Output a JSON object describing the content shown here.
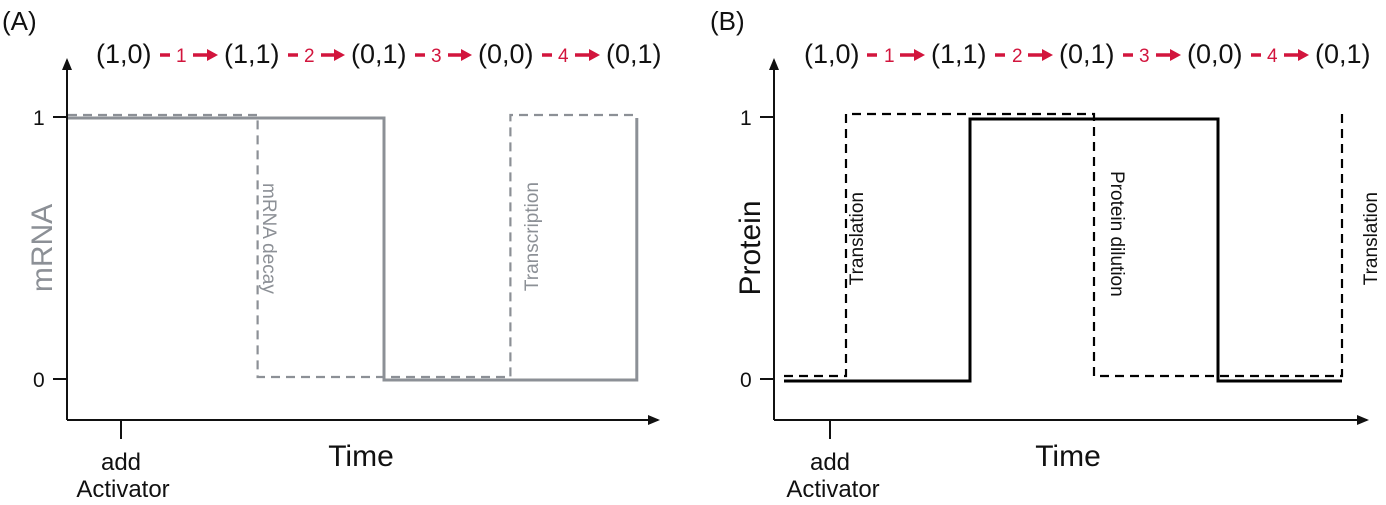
{
  "colors": {
    "panel_a_trace": "#8c9096",
    "panel_b_trace": "#000000",
    "step_accent": "#d2153d",
    "axis": "#111111"
  },
  "panel_a": {
    "label": "(A)",
    "states": [
      "(1,0)",
      "(1,1)",
      "(0,1)",
      "(0,0)",
      "(0,1)"
    ],
    "steps": [
      "1",
      "2",
      "3",
      "4"
    ],
    "y_axis_label": "mRNA",
    "x_axis_label": "Time",
    "y_ticks": [
      "1",
      "0"
    ],
    "event_label_line1": "add",
    "event_label_line2": "Activator",
    "annotations": [
      "mRNA decay",
      "Transcription"
    ],
    "chart_data": {
      "type": "line",
      "series": [
        {
          "style": "solid",
          "x": [
            0,
            5,
            5,
            9,
            9
          ],
          "y": [
            1,
            1,
            0,
            0,
            1
          ]
        },
        {
          "style": "dashed",
          "x": [
            0,
            3,
            3,
            7,
            7,
            9
          ],
          "y": [
            1,
            1,
            0,
            0,
            1,
            1
          ]
        }
      ]
    }
  },
  "panel_b": {
    "label": "(B)",
    "states": [
      "(1,0)",
      "(1,1)",
      "(0,1)",
      "(0,0)",
      "(0,1)"
    ],
    "steps": [
      "1",
      "2",
      "3",
      "4"
    ],
    "y_axis_label": "Protein",
    "x_axis_label": "Time",
    "y_ticks": [
      "1",
      "0"
    ],
    "event_label_line1": "add",
    "event_label_line2": "Activator",
    "annotations": [
      "Translation",
      "Protein dilution",
      "Translation"
    ],
    "chart_data": {
      "type": "line",
      "series": [
        {
          "style": "solid",
          "x": [
            0,
            3,
            3,
            7,
            7,
            9
          ],
          "y": [
            0,
            0,
            1,
            1,
            0,
            0
          ]
        },
        {
          "style": "dashed",
          "x": [
            0,
            1,
            1,
            5,
            5,
            9,
            9
          ],
          "y": [
            0,
            0,
            1,
            1,
            0,
            0,
            1
          ]
        }
      ]
    }
  }
}
